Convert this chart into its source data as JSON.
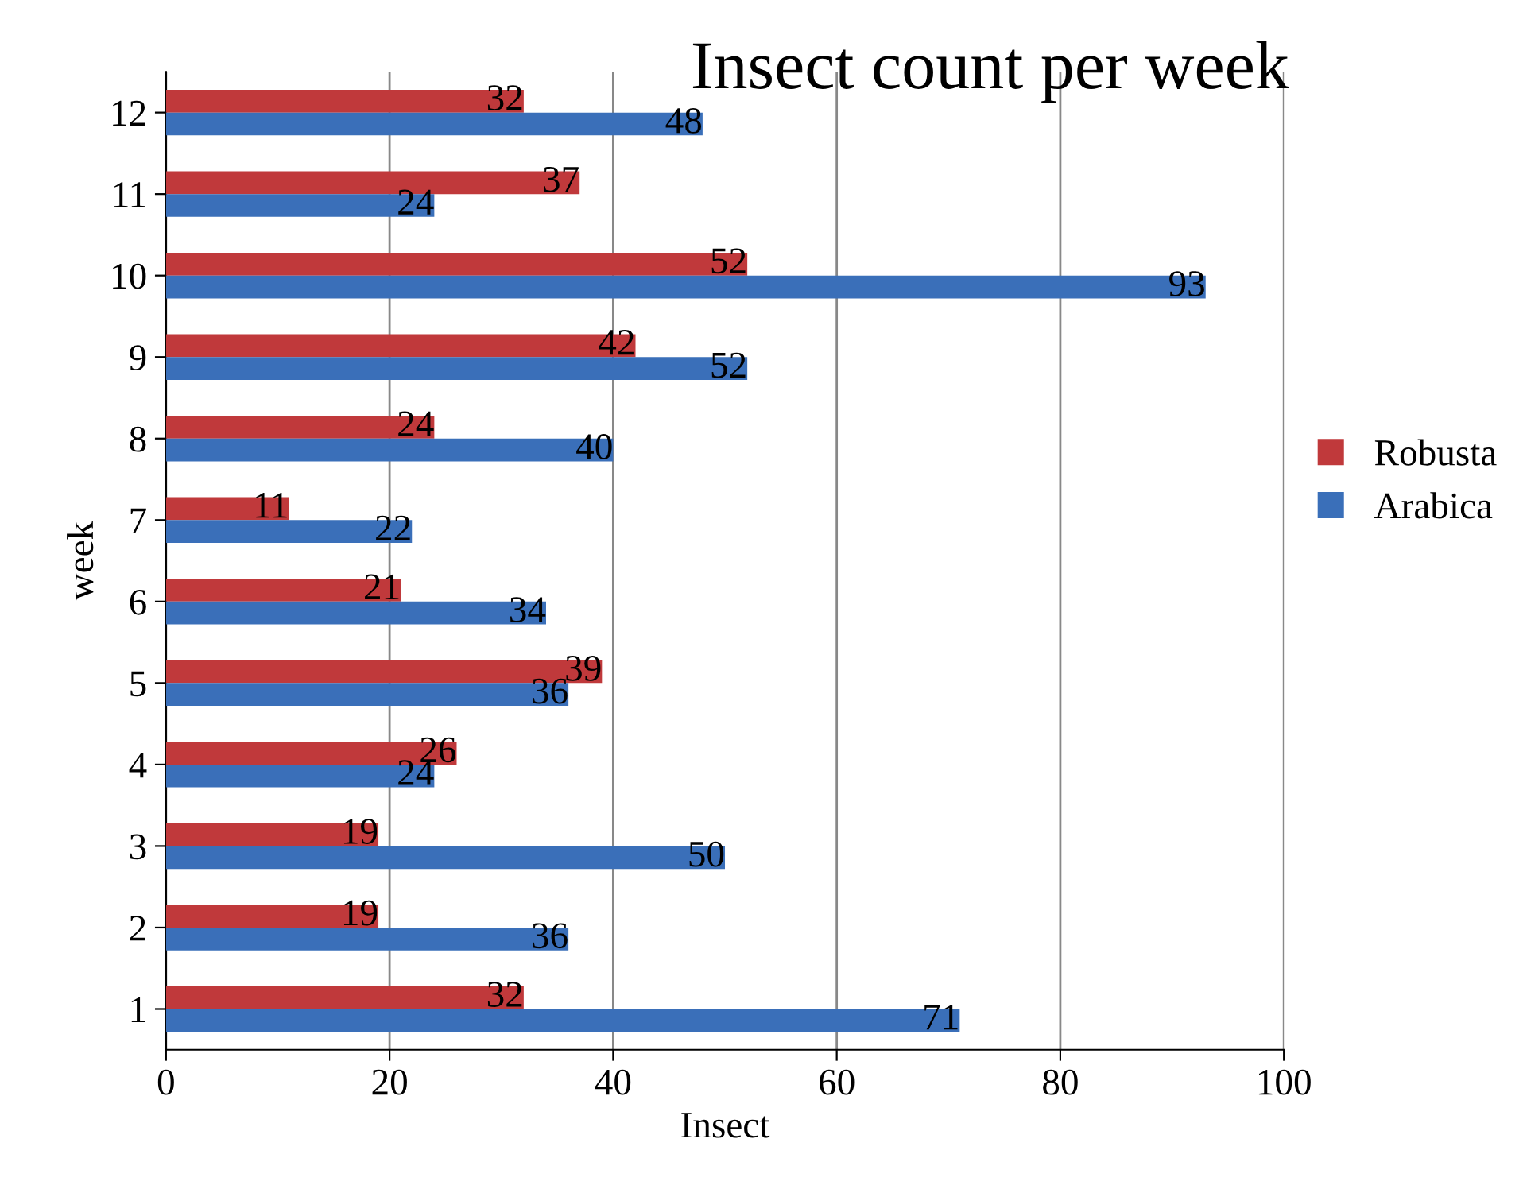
{
  "chart_data": {
    "type": "bar",
    "orientation": "horizontal",
    "title": "Insect count per week",
    "xlabel": "Insect",
    "ylabel": "week",
    "categories": [
      "12",
      "11",
      "10",
      "9",
      "8",
      "7",
      "6",
      "5",
      "4",
      "3",
      "2",
      "1"
    ],
    "series": [
      {
        "name": "Robusta",
        "color": "#c0393b",
        "values": [
          32,
          37,
          52,
          42,
          24,
          11,
          21,
          39,
          26,
          19,
          19,
          32
        ]
      },
      {
        "name": "Arabica",
        "color": "#3a6fb9",
        "values": [
          48,
          24,
          93,
          52,
          40,
          22,
          34,
          36,
          24,
          50,
          36,
          71
        ]
      }
    ],
    "xlim": [
      0,
      100
    ],
    "xticks": [
      0,
      20,
      40,
      60,
      80,
      100
    ],
    "grid": "x",
    "legend": "right",
    "data_labels": true
  }
}
